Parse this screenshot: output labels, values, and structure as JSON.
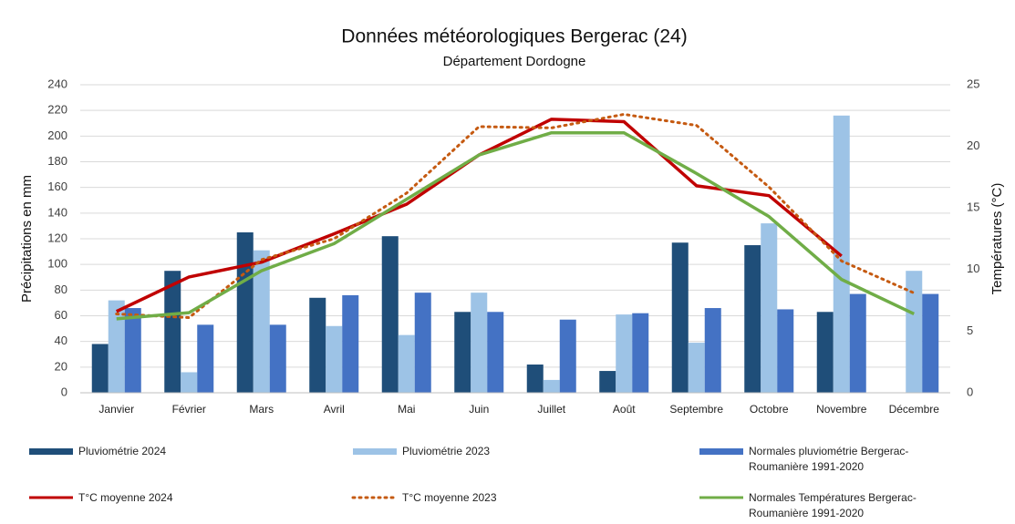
{
  "chart_data": {
    "type": "combo",
    "title": "Données météorologiques Bergerac (24)",
    "subtitle": "Département Dordogne",
    "y_label": "Précipitations en mm",
    "y2_label": "Températures (°C)",
    "categories": [
      "Janvier",
      "Février",
      "Mars",
      "Avril",
      "Mai",
      "Juin",
      "Juillet",
      "Août",
      "Septembre",
      "Octobre",
      "Novembre",
      "Décembre"
    ],
    "ylim": [
      0,
      240
    ],
    "yticks": [
      0,
      20,
      40,
      60,
      80,
      100,
      120,
      140,
      160,
      180,
      200,
      220,
      240
    ],
    "y2lim": [
      0,
      25
    ],
    "y2ticks": [
      0,
      5,
      10,
      15,
      20,
      25
    ],
    "grid": true,
    "series": [
      {
        "name": "Pluviométrie 2024",
        "type": "bar",
        "color": "#1f4e79",
        "values": [
          38,
          95,
          125,
          74,
          122,
          63,
          22,
          17,
          117,
          115,
          63,
          null
        ]
      },
      {
        "name": "Pluviométrie 2023",
        "type": "bar",
        "color": "#9dc3e6",
        "values": [
          72,
          16,
          111,
          52,
          45,
          78,
          10,
          61,
          39,
          132,
          216,
          95
        ]
      },
      {
        "name": "Normales pluviométrie Bergerac-Roumanière 1991-2020",
        "type": "bar",
        "color": "#4472c4",
        "values": [
          66,
          53,
          53,
          76,
          78,
          63,
          57,
          62,
          66,
          65,
          77,
          77
        ]
      },
      {
        "name": "T°C moyenne 2024",
        "type": "line",
        "axis": "y2",
        "color": "#c00000",
        "values": [
          6.6,
          9.4,
          10.6,
          12.9,
          15.3,
          19.3,
          22.2,
          22.0,
          16.8,
          16.0,
          11.1,
          null
        ]
      },
      {
        "name": "T°C moyenne 2023",
        "type": "line",
        "axis": "y2",
        "color": "#c55a11",
        "line_style": "dotted",
        "values": [
          6.4,
          6.1,
          10.8,
          12.5,
          16.2,
          21.6,
          21.5,
          22.6,
          21.7,
          16.7,
          10.7,
          8.1
        ]
      },
      {
        "name": "Normales Températures Bergerac-Roumanière 1991-2020",
        "type": "line",
        "axis": "y2",
        "color": "#70ad47",
        "values": [
          6.0,
          6.5,
          9.9,
          12.1,
          15.7,
          19.3,
          21.1,
          21.1,
          17.8,
          14.3,
          9.2,
          6.4
        ]
      }
    ]
  }
}
